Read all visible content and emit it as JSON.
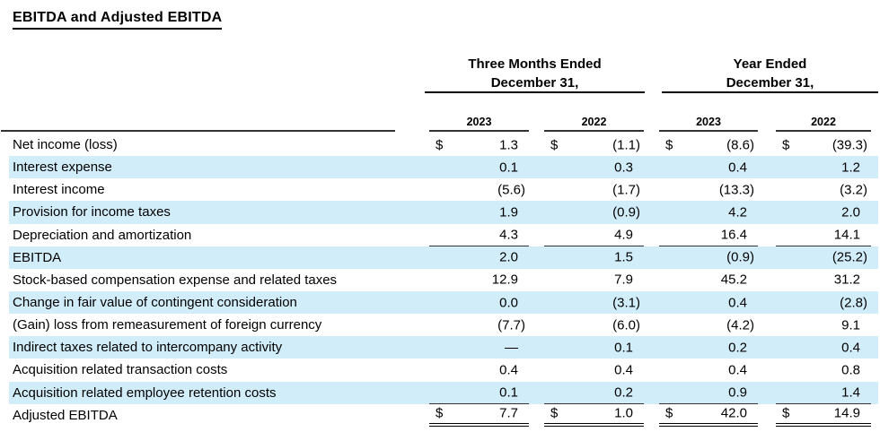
{
  "title": "EBITDA and Adjusted EBITDA",
  "colors": {
    "stripe": "#d2edfa",
    "rule": "#333333",
    "text": "#000000",
    "background": "#ffffff"
  },
  "table": {
    "group_headers": [
      {
        "line1": "Three Months Ended",
        "line2": "December 31,"
      },
      {
        "line1": "Year Ended",
        "line2": "December 31,"
      }
    ],
    "year_headers": [
      "2023",
      "2022",
      "2023",
      "2022"
    ],
    "currency_symbol": "$",
    "rows": [
      {
        "label": "Net income (loss)",
        "dollar": true,
        "shade": false,
        "underline": "none",
        "values": [
          "1.3",
          "(1.1)",
          "(8.6)",
          "(39.3)"
        ]
      },
      {
        "label": "Interest expense",
        "dollar": false,
        "shade": true,
        "underline": "none",
        "values": [
          "0.1",
          "0.3",
          "0.4",
          "1.2"
        ]
      },
      {
        "label": "Interest income",
        "dollar": false,
        "shade": false,
        "underline": "none",
        "values": [
          "(5.6)",
          "(1.7)",
          "(13.3)",
          "(3.2)"
        ]
      },
      {
        "label": "Provision for income taxes",
        "dollar": false,
        "shade": true,
        "underline": "none",
        "values": [
          "1.9",
          "(0.9)",
          "4.2",
          "2.0"
        ]
      },
      {
        "label": "Depreciation and amortization",
        "dollar": false,
        "shade": false,
        "underline": "single",
        "values": [
          "4.3",
          "4.9",
          "16.4",
          "14.1"
        ]
      },
      {
        "label": "EBITDA",
        "dollar": false,
        "shade": true,
        "underline": "none",
        "values": [
          "2.0",
          "1.5",
          "(0.9)",
          "(25.2)"
        ]
      },
      {
        "label": "Stock-based compensation expense and related taxes",
        "dollar": false,
        "shade": false,
        "underline": "none",
        "values": [
          "12.9",
          "7.9",
          "45.2",
          "31.2"
        ]
      },
      {
        "label": "Change in fair value of contingent consideration",
        "dollar": false,
        "shade": true,
        "underline": "none",
        "values": [
          "0.0",
          "(3.1)",
          "0.4",
          "(2.8)"
        ]
      },
      {
        "label": "(Gain) loss from remeasurement of foreign currency",
        "dollar": false,
        "shade": false,
        "underline": "none",
        "values": [
          "(7.7)",
          "(6.0)",
          "(4.2)",
          "9.1"
        ]
      },
      {
        "label": "Indirect taxes related to intercompany activity",
        "dollar": false,
        "shade": true,
        "underline": "none",
        "values": [
          "—",
          "0.1",
          "0.2",
          "0.4"
        ]
      },
      {
        "label": "Acquisition related transaction costs",
        "dollar": false,
        "shade": false,
        "underline": "none",
        "values": [
          "0.4",
          "0.4",
          "0.4",
          "0.8"
        ]
      },
      {
        "label": "Acquisition related employee retention costs",
        "dollar": false,
        "shade": true,
        "underline": "single",
        "values": [
          "0.1",
          "0.2",
          "0.9",
          "1.4"
        ]
      },
      {
        "label": "Adjusted EBITDA",
        "dollar": true,
        "shade": false,
        "underline": "double",
        "values": [
          "7.7",
          "1.0",
          "42.0",
          "14.9"
        ]
      }
    ]
  }
}
